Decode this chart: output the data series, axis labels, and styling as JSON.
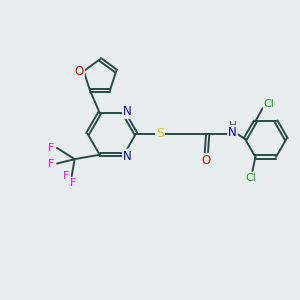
{
  "bg_color": "#e8eef0",
  "bond_color": "#2a4a4a",
  "bond_width": 1.4,
  "atom_colors": {
    "O": "#ff0000",
    "N": "#0000cc",
    "S": "#cccc00",
    "F": "#ff00ff",
    "Cl": "#00bb00",
    "H": "#444444"
  },
  "dbo": 0.055
}
